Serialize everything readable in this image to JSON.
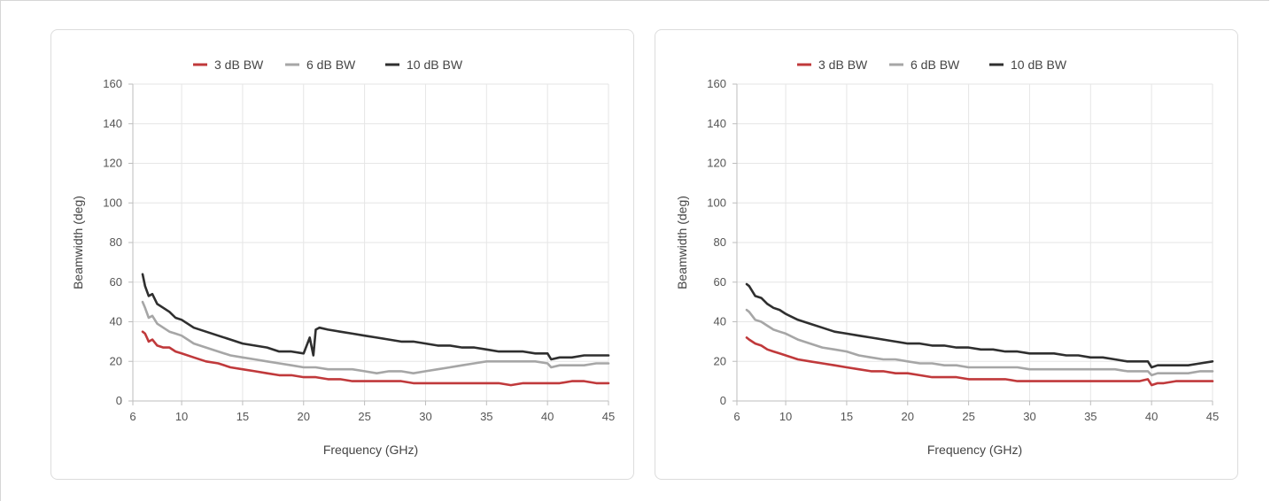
{
  "chart_data": [
    {
      "type": "line",
      "xlabel": "Frequency (GHz)",
      "ylabel": "Beamwidth (deg)",
      "xlim": [
        6,
        45
      ],
      "ylim": [
        0,
        160
      ],
      "xticks": [
        6,
        10,
        15,
        20,
        25,
        30,
        35,
        40,
        45
      ],
      "yticks": [
        0,
        20,
        40,
        60,
        80,
        100,
        120,
        140,
        160
      ],
      "grid": true,
      "legend_position": "top-center",
      "series": [
        {
          "name": "3 dB BW",
          "color": "#c0393b",
          "x": [
            6.8,
            7.0,
            7.3,
            7.6,
            8.0,
            8.5,
            9.0,
            9.5,
            10,
            11,
            12,
            13,
            14,
            15,
            16,
            17,
            18,
            19,
            20,
            21,
            22,
            23,
            24,
            25,
            26,
            27,
            28,
            29,
            30,
            31,
            32,
            33,
            34,
            35,
            36,
            37,
            38,
            39,
            40,
            41,
            42,
            43,
            44,
            45
          ],
          "y": [
            35,
            34,
            30,
            31,
            28,
            27,
            27,
            25,
            24,
            22,
            20,
            19,
            17,
            16,
            15,
            14,
            13,
            13,
            12,
            12,
            11,
            11,
            10,
            10,
            10,
            10,
            10,
            9,
            9,
            9,
            9,
            9,
            9,
            9,
            9,
            8,
            9,
            9,
            9,
            9,
            10,
            10,
            9,
            9
          ]
        },
        {
          "name": "6 dB BW",
          "color": "#a6a6a6",
          "x": [
            6.8,
            7.0,
            7.3,
            7.6,
            8.0,
            8.5,
            9.0,
            9.5,
            10,
            11,
            12,
            13,
            14,
            15,
            16,
            17,
            18,
            19,
            20,
            21,
            22,
            23,
            24,
            25,
            26,
            27,
            28,
            29,
            30,
            31,
            32,
            33,
            34,
            35,
            36,
            37,
            38,
            39,
            40,
            40.3,
            41,
            42,
            43,
            44,
            45
          ],
          "y": [
            50,
            47,
            42,
            43,
            39,
            37,
            35,
            34,
            33,
            29,
            27,
            25,
            23,
            22,
            21,
            20,
            19,
            18,
            17,
            17,
            16,
            16,
            16,
            15,
            14,
            15,
            15,
            14,
            15,
            16,
            17,
            18,
            19,
            20,
            20,
            20,
            20,
            20,
            19,
            17,
            18,
            18,
            18,
            19,
            19
          ]
        },
        {
          "name": "10 dB BW",
          "color": "#2f2f2f",
          "x": [
            6.8,
            7.0,
            7.3,
            7.6,
            8.0,
            8.5,
            9.0,
            9.5,
            10,
            11,
            12,
            13,
            14,
            15,
            16,
            17,
            18,
            19,
            20,
            20.5,
            20.8,
            21,
            21.3,
            22,
            23,
            24,
            25,
            26,
            27,
            28,
            29,
            30,
            31,
            32,
            33,
            34,
            35,
            36,
            37,
            38,
            39,
            40,
            40.3,
            41,
            42,
            43,
            44,
            45
          ],
          "y": [
            64,
            58,
            53,
            54,
            49,
            47,
            45,
            42,
            41,
            37,
            35,
            33,
            31,
            29,
            28,
            27,
            25,
            25,
            24,
            32,
            23,
            36,
            37,
            36,
            35,
            34,
            33,
            32,
            31,
            30,
            30,
            29,
            28,
            28,
            27,
            27,
            26,
            25,
            25,
            25,
            24,
            24,
            21,
            22,
            22,
            23,
            23,
            23
          ]
        }
      ]
    },
    {
      "type": "line",
      "xlabel": "Frequency (GHz)",
      "ylabel": "Beamwidth (deg)",
      "xlim": [
        6,
        45
      ],
      "ylim": [
        0,
        160
      ],
      "xticks": [
        6,
        10,
        15,
        20,
        25,
        30,
        35,
        40,
        45
      ],
      "yticks": [
        0,
        20,
        40,
        60,
        80,
        100,
        120,
        140,
        160
      ],
      "grid": true,
      "legend_position": "top-center",
      "series": [
        {
          "name": "3 dB BW",
          "color": "#c0393b",
          "x": [
            6.8,
            7.0,
            7.5,
            8.0,
            8.5,
            9.0,
            9.5,
            10,
            11,
            12,
            13,
            14,
            15,
            16,
            17,
            18,
            19,
            20,
            21,
            22,
            23,
            24,
            25,
            26,
            27,
            28,
            29,
            30,
            31,
            32,
            33,
            34,
            35,
            36,
            37,
            38,
            39,
            39.7,
            40,
            40.5,
            41,
            42,
            43,
            44,
            45
          ],
          "y": [
            32,
            31,
            29,
            28,
            26,
            25,
            24,
            23,
            21,
            20,
            19,
            18,
            17,
            16,
            15,
            15,
            14,
            14,
            13,
            12,
            12,
            12,
            11,
            11,
            11,
            11,
            10,
            10,
            10,
            10,
            10,
            10,
            10,
            10,
            10,
            10,
            10,
            11,
            8,
            9,
            9,
            10,
            10,
            10,
            10
          ]
        },
        {
          "name": "6 dB BW",
          "color": "#a6a6a6",
          "x": [
            6.8,
            7.0,
            7.5,
            8.0,
            8.5,
            9.0,
            9.5,
            10,
            11,
            12,
            13,
            14,
            15,
            16,
            17,
            18,
            19,
            20,
            21,
            22,
            23,
            24,
            25,
            26,
            27,
            28,
            29,
            30,
            31,
            32,
            33,
            34,
            35,
            36,
            37,
            38,
            39,
            39.7,
            40,
            40.5,
            41,
            42,
            43,
            44,
            45
          ],
          "y": [
            46,
            45,
            41,
            40,
            38,
            36,
            35,
            34,
            31,
            29,
            27,
            26,
            25,
            23,
            22,
            21,
            21,
            20,
            19,
            19,
            18,
            18,
            17,
            17,
            17,
            17,
            17,
            16,
            16,
            16,
            16,
            16,
            16,
            16,
            16,
            15,
            15,
            15,
            13,
            14,
            14,
            14,
            14,
            15,
            15
          ]
        },
        {
          "name": "10 dB BW",
          "color": "#2f2f2f",
          "x": [
            6.8,
            7.0,
            7.5,
            8.0,
            8.5,
            9.0,
            9.5,
            10,
            11,
            12,
            13,
            14,
            15,
            16,
            17,
            18,
            19,
            20,
            21,
            22,
            23,
            24,
            25,
            26,
            27,
            28,
            29,
            30,
            31,
            32,
            33,
            34,
            35,
            36,
            37,
            38,
            39,
            39.7,
            40,
            40.5,
            41,
            42,
            43,
            44,
            45
          ],
          "y": [
            59,
            58,
            53,
            52,
            49,
            47,
            46,
            44,
            41,
            39,
            37,
            35,
            34,
            33,
            32,
            31,
            30,
            29,
            29,
            28,
            28,
            27,
            27,
            26,
            26,
            25,
            25,
            24,
            24,
            24,
            23,
            23,
            22,
            22,
            21,
            20,
            20,
            20,
            17,
            18,
            18,
            18,
            18,
            19,
            20
          ]
        }
      ]
    }
  ]
}
